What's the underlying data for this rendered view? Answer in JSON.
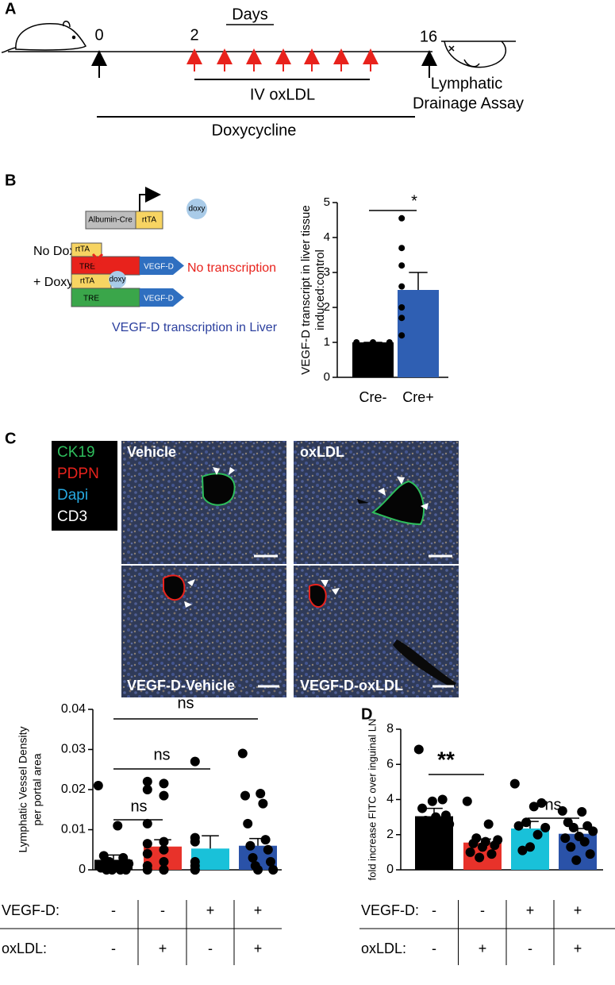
{
  "panel_labels": [
    "A",
    "B",
    "C",
    "D"
  ],
  "timeline": {
    "axis_title": "Days",
    "ticks": [
      "0",
      "2",
      "16"
    ],
    "treatment": "IV oxLDL",
    "assay": [
      "Lymphatic",
      "Drainage Assay"
    ],
    "drug": "Doxycycline"
  },
  "construct": {
    "driver": "Albumin-Cre",
    "activator": "rtTA",
    "doxy": "doxy",
    "no_doxy": {
      "label": "No Doxy",
      "activator": "rtTA",
      "promoter": "TRE",
      "gene": "VEGF-D",
      "outcome": "No transcription"
    },
    "plus_doxy": {
      "label": "+ Doxy",
      "activator": "rtTA",
      "doxy": "doxy",
      "promoter": "TRE",
      "gene": "VEGF-D"
    },
    "caption": "VEGF-D transcription in Liver"
  },
  "micrographs": {
    "legend": [
      {
        "text": "CK19",
        "color": "#2ebd5c"
      },
      {
        "text": "PDPN",
        "color": "#e8221c"
      },
      {
        "text": "Dapi",
        "color": "#27a9e1"
      },
      {
        "text": "CD3",
        "color": "#ffffff"
      }
    ],
    "images": [
      "Vehicle",
      "oxLDL",
      "VEGF-D-Vehicle",
      "VEGF-D-oxLDL"
    ]
  },
  "chart_data": [
    {
      "type": "bar",
      "y_label": [
        "VEGF-D transcript in liver tissue",
        "induced:control"
      ],
      "categories": [
        "Cre-",
        "Cre+"
      ],
      "values": [
        1.0,
        2.5
      ],
      "errors": [
        0,
        0.5
      ],
      "colors": [
        "#000000",
        "#2f5fb3"
      ],
      "points": [
        [
          1.0,
          1.0,
          1.0
        ],
        [
          4.55,
          3.7,
          3.2,
          2.6,
          2.0,
          1.7,
          1.2
        ]
      ],
      "ylim": [
        0,
        5
      ],
      "yticks": [
        0,
        1,
        2,
        3,
        4,
        5
      ],
      "annotations": [
        "*"
      ]
    },
    {
      "type": "bar",
      "y_label": [
        "Lymphatic Vessel Density",
        "per portal area"
      ],
      "values": [
        0.0025,
        0.0058,
        0.0053,
        0.006
      ],
      "errors": [
        0.0012,
        0.0017,
        0.0032,
        0.0018
      ],
      "colors": [
        "#000000",
        "#e8322a",
        "#19c1d9",
        "#2a52a8"
      ],
      "points": [
        [
          0.021,
          0.011,
          0.0035,
          0.003,
          0.002,
          0.0015,
          0.001,
          0.0005,
          0,
          0,
          0,
          0
        ],
        [
          0.022,
          0.0215,
          0.02,
          0.0185,
          0.0115,
          0.007,
          0.0065,
          0.005,
          0.004,
          0.002,
          0.001,
          0,
          0,
          0
        ],
        [
          0.027,
          0.008,
          0.007,
          0.002,
          0.001,
          0,
          0
        ],
        [
          0.029,
          0.019,
          0.0185,
          0.0165,
          0.0115,
          0.0075,
          0.006,
          0.005,
          0.003,
          0.002,
          0.001,
          0,
          0
        ]
      ],
      "ylim": [
        0,
        0.04
      ],
      "yticks": [
        0,
        0.01,
        0.02,
        0.03,
        0.04
      ],
      "annotations": [
        "ns",
        "ns",
        "ns"
      ],
      "conditions": [
        {
          "label": "VEGF-D:",
          "values": [
            "-",
            "-",
            "+",
            "+"
          ]
        },
        {
          "label": "oxLDL:",
          "values": [
            "-",
            "+",
            "-",
            "+"
          ]
        }
      ]
    },
    {
      "type": "bar",
      "y_label": [
        "fold increase FITC over inguinal LN"
      ],
      "values": [
        3.05,
        1.55,
        2.35,
        2.05
      ],
      "errors": [
        0.45,
        0.2,
        0.4,
        0.3
      ],
      "colors": [
        "#000000",
        "#e8322a",
        "#19c1d9",
        "#2a52a8"
      ],
      "points": [
        [
          6.85,
          4.0,
          3.9,
          3.5,
          3.1,
          3.0,
          2.8,
          2.6,
          2.3,
          2.2
        ],
        [
          3.9,
          2.6,
          1.8,
          1.7,
          1.6,
          1.5,
          1.4,
          1.3,
          1.0,
          0.9,
          0.7
        ],
        [
          4.9,
          3.8,
          3.6,
          2.7,
          2.5,
          2.4,
          2.0,
          1.3,
          1.1
        ],
        [
          3.35,
          3.3,
          2.7,
          2.5,
          2.4,
          2.2,
          1.9,
          1.8,
          1.6,
          1.3,
          0.9,
          0.55
        ]
      ],
      "ylim": [
        0,
        8
      ],
      "yticks": [
        0,
        2,
        4,
        6,
        8
      ],
      "annotations": [
        "**",
        "ns"
      ],
      "conditions": [
        {
          "label": "VEGF-D:",
          "values": [
            "-",
            "-",
            "+",
            "+"
          ]
        },
        {
          "label": "oxLDL:",
          "values": [
            "-",
            "+",
            "-",
            "+"
          ]
        }
      ]
    }
  ]
}
